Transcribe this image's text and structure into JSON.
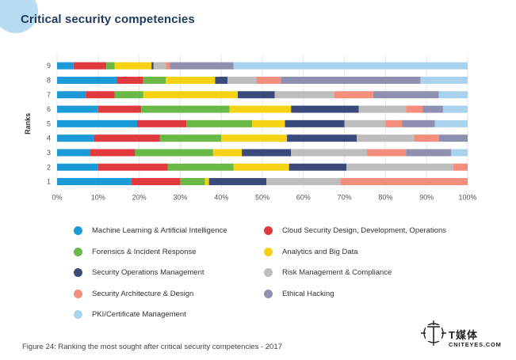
{
  "colors": {
    "title": "#1f3a5f",
    "title_circle": "#b8dcf2",
    "grid": "#e6e6e6",
    "axis_text": "#555555"
  },
  "chart_data": {
    "type": "bar",
    "orientation": "horizontal",
    "stacked": true,
    "title": "Critical security competencies",
    "xlabel": "",
    "ylabel": "Ranks",
    "xlim": [
      0,
      100
    ],
    "x_ticks": [
      "0%",
      "10%",
      "20%",
      "30%",
      "40%",
      "50%",
      "60%",
      "70%",
      "80%",
      "90%",
      "100%"
    ],
    "categories": [
      "9",
      "8",
      "7",
      "6",
      "5",
      "4",
      "3",
      "2",
      "1"
    ],
    "series": [
      {
        "name": "Machine Learning & Artificial Intelligence",
        "color": "#1a9ad6",
        "values": [
          4,
          14.5,
          7,
          10,
          19.5,
          9,
          8,
          10,
          18
        ]
      },
      {
        "name": "Cloud Security Design, Development, Operations",
        "color": "#e03a3e",
        "values": [
          8,
          6.5,
          7,
          10.5,
          12,
          16,
          11,
          17,
          12
        ]
      },
      {
        "name": "Forensics & Incident Response",
        "color": "#6ab845",
        "values": [
          2,
          5.5,
          7,
          21.5,
          16,
          15,
          19,
          16,
          6
        ]
      },
      {
        "name": "Analytics and Big Data",
        "color": "#f5d314",
        "values": [
          9,
          12,
          23,
          15,
          8,
          16,
          7,
          13.5,
          1
        ]
      },
      {
        "name": "Security Operations Management",
        "color": "#3a4a7a",
        "values": [
          0.5,
          3,
          9,
          16.5,
          14.5,
          17,
          12,
          14,
          14
        ]
      },
      {
        "name": "Risk Management & Compliance",
        "color": "#bdbdbd",
        "values": [
          3,
          7,
          14.5,
          11.5,
          10,
          14,
          18.5,
          26,
          18
        ]
      },
      {
        "name": "Security Architecture & Design",
        "color": "#f28e7b",
        "values": [
          1,
          6,
          9.5,
          4,
          4,
          6,
          9.5,
          3.5,
          31
        ]
      },
      {
        "name": "Ethical Hacking",
        "color": "#8f8fb0",
        "values": [
          15.5,
          34,
          16,
          5,
          8,
          7,
          11,
          0,
          0
        ]
      },
      {
        "name": "PKI/Certificate Management",
        "color": "#a9d2ee",
        "values": [
          57,
          11.5,
          7,
          6,
          8,
          0,
          4,
          0,
          0
        ]
      }
    ]
  },
  "caption": "Figure 24: Ranking the most sought after critical security competencies - 2017",
  "logo": {
    "name": "T媒体",
    "site": "CNITEYES.COM"
  }
}
